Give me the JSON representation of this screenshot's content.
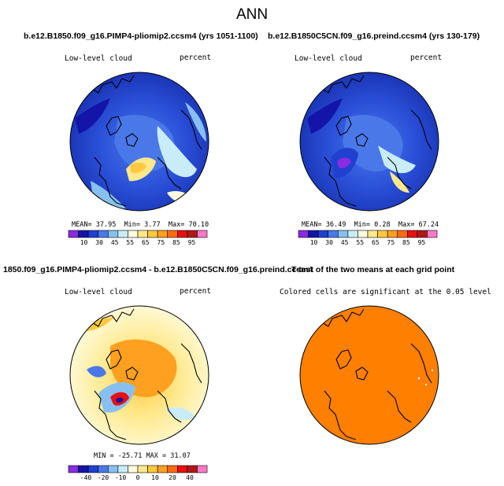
{
  "title": "ANN",
  "panels": [
    {
      "id": "p1",
      "title": "b.e12.B1850.f09_g16.PIMP4-pliomip2.ccsm4 (yrs 1051-1100)",
      "variable": "Low-level cloud",
      "units": "percent",
      "stats": {
        "mean_label": "MEAN=",
        "mean": "37.95",
        "min_label": "Min=",
        "min": "3.77",
        "max_label": "Max=",
        "max": "70.10"
      },
      "colorbar": {
        "ticks": [
          "10",
          "30",
          "45",
          "55",
          "65",
          "75",
          "85",
          "95"
        ],
        "colors": [
          "#8a2be2",
          "#1414a8",
          "#2040d0",
          "#4a78e8",
          "#87c0f0",
          "#c8ecf8",
          "#fffce0",
          "#ffe88a",
          "#ffc840",
          "#ffa020",
          "#ff6a10",
          "#e81010",
          "#b01818",
          "#ff78c8"
        ]
      }
    },
    {
      "id": "p2",
      "title": "b.e12.B1850C5CN.f09_g16.preind.ccsm4 (yrs 130-179)",
      "variable": "Low-level cloud",
      "units": "percent",
      "stats": {
        "mean_label": "MEAN=",
        "mean": "36.49",
        "min_label": "Min=",
        "min": "0.28",
        "max_label": "Max=",
        "max": "67.24"
      },
      "colorbar": {
        "ticks": [
          "10",
          "30",
          "45",
          "55",
          "65",
          "75",
          "85",
          "95"
        ],
        "colors": [
          "#8a2be2",
          "#1414a8",
          "#2040d0",
          "#4a78e8",
          "#87c0f0",
          "#c8ecf8",
          "#fffce0",
          "#ffe88a",
          "#ffc840",
          "#ffa020",
          "#ff6a10",
          "#e81010",
          "#b01818",
          "#ff78c8"
        ]
      }
    },
    {
      "id": "p3",
      "title": "1850.f09_g16.PIMP4-pliomip2.ccsm4 - b.e12.B1850C5CN.f09_g16.preind.ccsm4",
      "variable": "Low-level cloud",
      "units": "percent",
      "stats": {
        "text": "MIN = -25.71  MAX =  31.07"
      },
      "colorbar": {
        "ticks": [
          "-40",
          "-20",
          "-10",
          "0",
          "10",
          "20",
          "40"
        ],
        "colors": [
          "#8a2be2",
          "#1414a8",
          "#2040d0",
          "#4a78e8",
          "#87c0f0",
          "#c8ecf8",
          "#fffce0",
          "#ffe88a",
          "#ffc840",
          "#ffa020",
          "#ff6a10",
          "#e81010",
          "#b01818",
          "#ff78c8"
        ]
      }
    },
    {
      "id": "p4",
      "title": "T-test of the two means at each grid point",
      "note": "Colored cells are significant at the 0.05 level",
      "fill_color": "#ff7f00"
    }
  ]
}
